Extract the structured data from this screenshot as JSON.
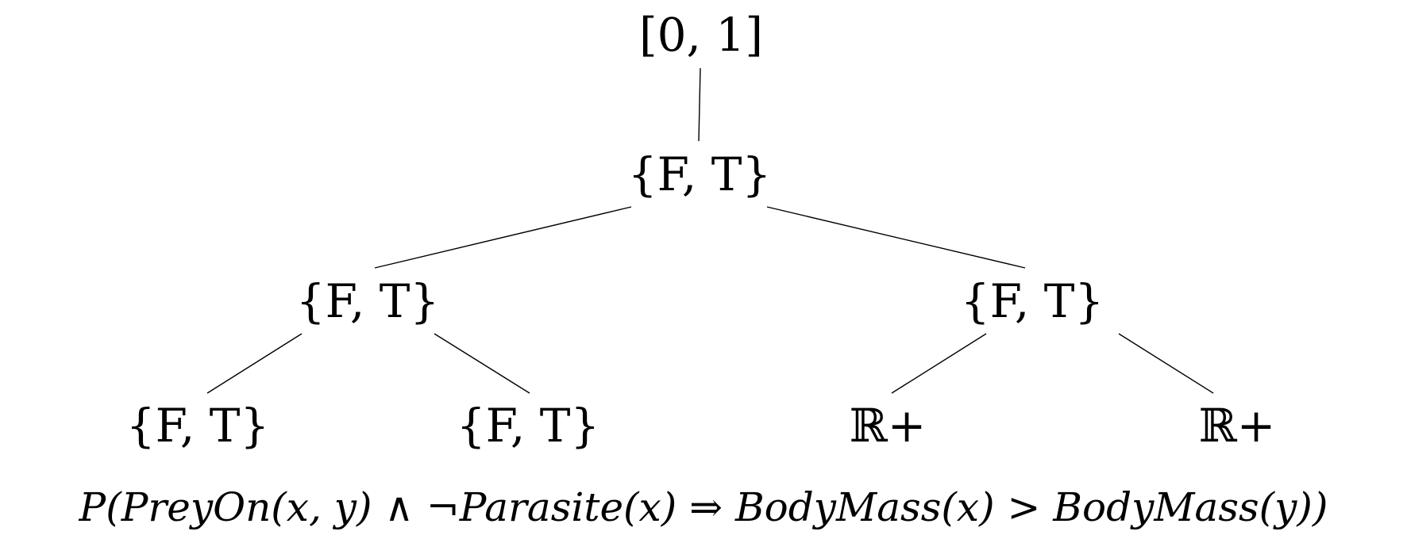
{
  "tree": {
    "root": {
      "id": "root",
      "label": "[0, 1]"
    },
    "level1": {
      "id": "n1",
      "label": "{F, T}"
    },
    "level2": [
      {
        "id": "n2a",
        "label": "{F, T}"
      },
      {
        "id": "n2b",
        "label": "{F, T}"
      }
    ],
    "level3": [
      {
        "id": "n3a",
        "label": "{F, T}"
      },
      {
        "id": "n3b",
        "label": "{F, T}"
      },
      {
        "id": "n3c",
        "label": "ℝ+"
      },
      {
        "id": "n3d",
        "label": "ℝ+"
      }
    ],
    "edges": [
      [
        "root",
        "n1"
      ],
      [
        "n1",
        "n2a"
      ],
      [
        "n1",
        "n2b"
      ],
      [
        "n2a",
        "n3a"
      ],
      [
        "n2a",
        "n3b"
      ],
      [
        "n2b",
        "n3c"
      ],
      [
        "n2b",
        "n3d"
      ]
    ]
  },
  "formula": "P(PreyOn(x, y) ∧ ¬Parasite(x) ⇒ BodyMass(x) > BodyMass(y))",
  "colors": {
    "background": "#ffffff",
    "ink": "#000000"
  }
}
